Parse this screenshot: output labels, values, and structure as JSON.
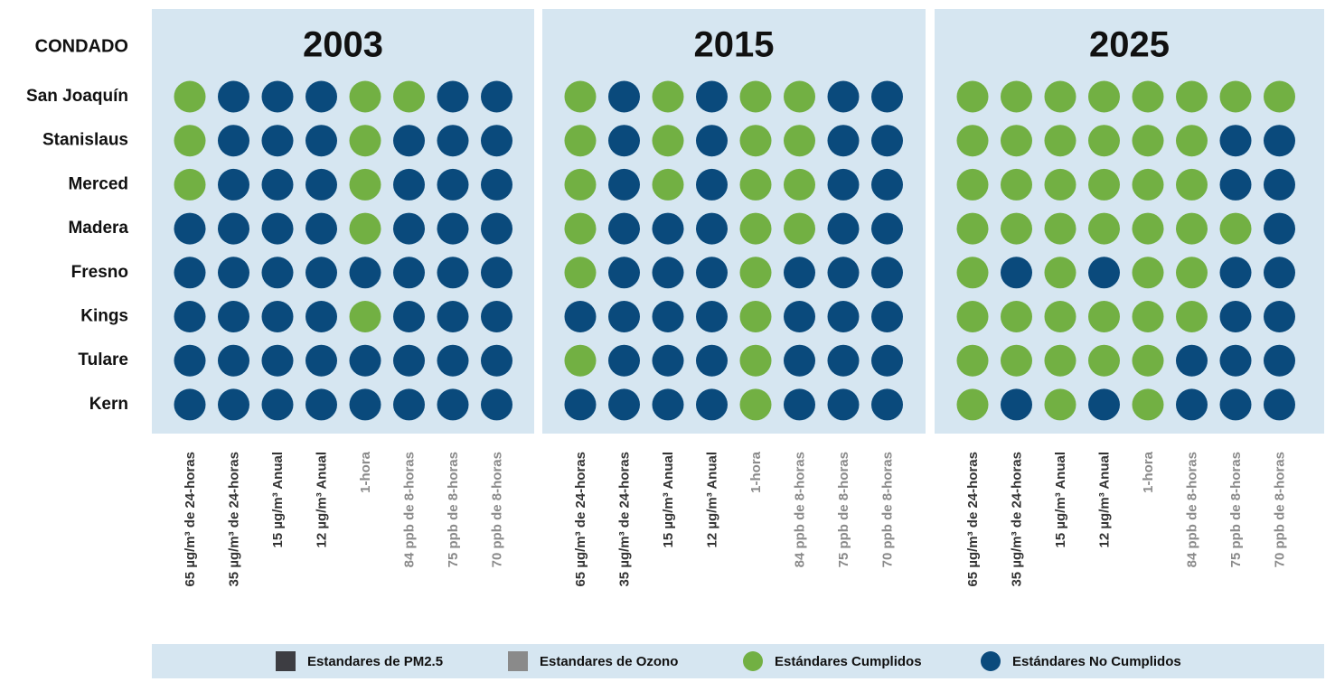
{
  "chart_data": {
    "type": "dot-grid",
    "row_header": "CONDADO",
    "counties": [
      "San Joaquín",
      "Stanislaus",
      "Merced",
      "Madera",
      "Fresno",
      "Kings",
      "Tulare",
      "Kern"
    ],
    "standards": [
      {
        "label": "65 µg/m³ de 24-horas",
        "color": "#333333"
      },
      {
        "label": "35 µg/m³ de 24-horas",
        "color": "#333333"
      },
      {
        "label": "15 µg/m³ Anual",
        "color": "#333333"
      },
      {
        "label": "12 µg/m³ Anual",
        "color": "#333333"
      },
      {
        "label": "1-hora",
        "color": "#8a8a8a"
      },
      {
        "label": "84 ppb de 8-horas",
        "color": "#8a8a8a"
      },
      {
        "label": "75 ppb de 8-horas",
        "color": "#8a8a8a"
      },
      {
        "label": "70 ppb de 8-horas",
        "color": "#8a8a8a"
      }
    ],
    "panels": [
      {
        "year": "2003",
        "met": [
          [
            true,
            false,
            false,
            false,
            true,
            true,
            false,
            false
          ],
          [
            true,
            false,
            false,
            false,
            true,
            false,
            false,
            false
          ],
          [
            true,
            false,
            false,
            false,
            true,
            false,
            false,
            false
          ],
          [
            false,
            false,
            false,
            false,
            true,
            false,
            false,
            false
          ],
          [
            false,
            false,
            false,
            false,
            false,
            false,
            false,
            false
          ],
          [
            false,
            false,
            false,
            false,
            true,
            false,
            false,
            false
          ],
          [
            false,
            false,
            false,
            false,
            false,
            false,
            false,
            false
          ],
          [
            false,
            false,
            false,
            false,
            false,
            false,
            false,
            false
          ]
        ]
      },
      {
        "year": "2015",
        "met": [
          [
            true,
            false,
            true,
            false,
            true,
            true,
            false,
            false
          ],
          [
            true,
            false,
            true,
            false,
            true,
            true,
            false,
            false
          ],
          [
            true,
            false,
            true,
            false,
            true,
            true,
            false,
            false
          ],
          [
            true,
            false,
            false,
            false,
            true,
            true,
            false,
            false
          ],
          [
            true,
            false,
            false,
            false,
            true,
            false,
            false,
            false
          ],
          [
            false,
            false,
            false,
            false,
            true,
            false,
            false,
            false
          ],
          [
            true,
            false,
            false,
            false,
            true,
            false,
            false,
            false
          ],
          [
            false,
            false,
            false,
            false,
            true,
            false,
            false,
            false
          ]
        ]
      },
      {
        "year": "2025",
        "met": [
          [
            true,
            true,
            true,
            true,
            true,
            true,
            true,
            true
          ],
          [
            true,
            true,
            true,
            true,
            true,
            true,
            false,
            false
          ],
          [
            true,
            true,
            true,
            true,
            true,
            true,
            false,
            false
          ],
          [
            true,
            true,
            true,
            true,
            true,
            true,
            true,
            false
          ],
          [
            true,
            false,
            true,
            false,
            true,
            true,
            false,
            false
          ],
          [
            true,
            true,
            true,
            true,
            true,
            true,
            false,
            false
          ],
          [
            true,
            true,
            true,
            true,
            true,
            false,
            false,
            false
          ],
          [
            true,
            false,
            true,
            false,
            true,
            false,
            false,
            false
          ]
        ]
      }
    ],
    "panel_color": "#d6e6f1",
    "met_color": "#72b043",
    "unmet_color": "#0a4a7c",
    "legend": [
      {
        "label": "Estandares de PM2.5",
        "color": "#3d3d42",
        "shape": "square"
      },
      {
        "label": "Estandares de Ozono",
        "color": "#8a8a8a",
        "shape": "square"
      },
      {
        "label": "Estándares Cumplidos",
        "color": "#72b043",
        "shape": "circle"
      },
      {
        "label": "Estándares No Cumplidos",
        "color": "#0a4a7c",
        "shape": "circle"
      }
    ]
  }
}
